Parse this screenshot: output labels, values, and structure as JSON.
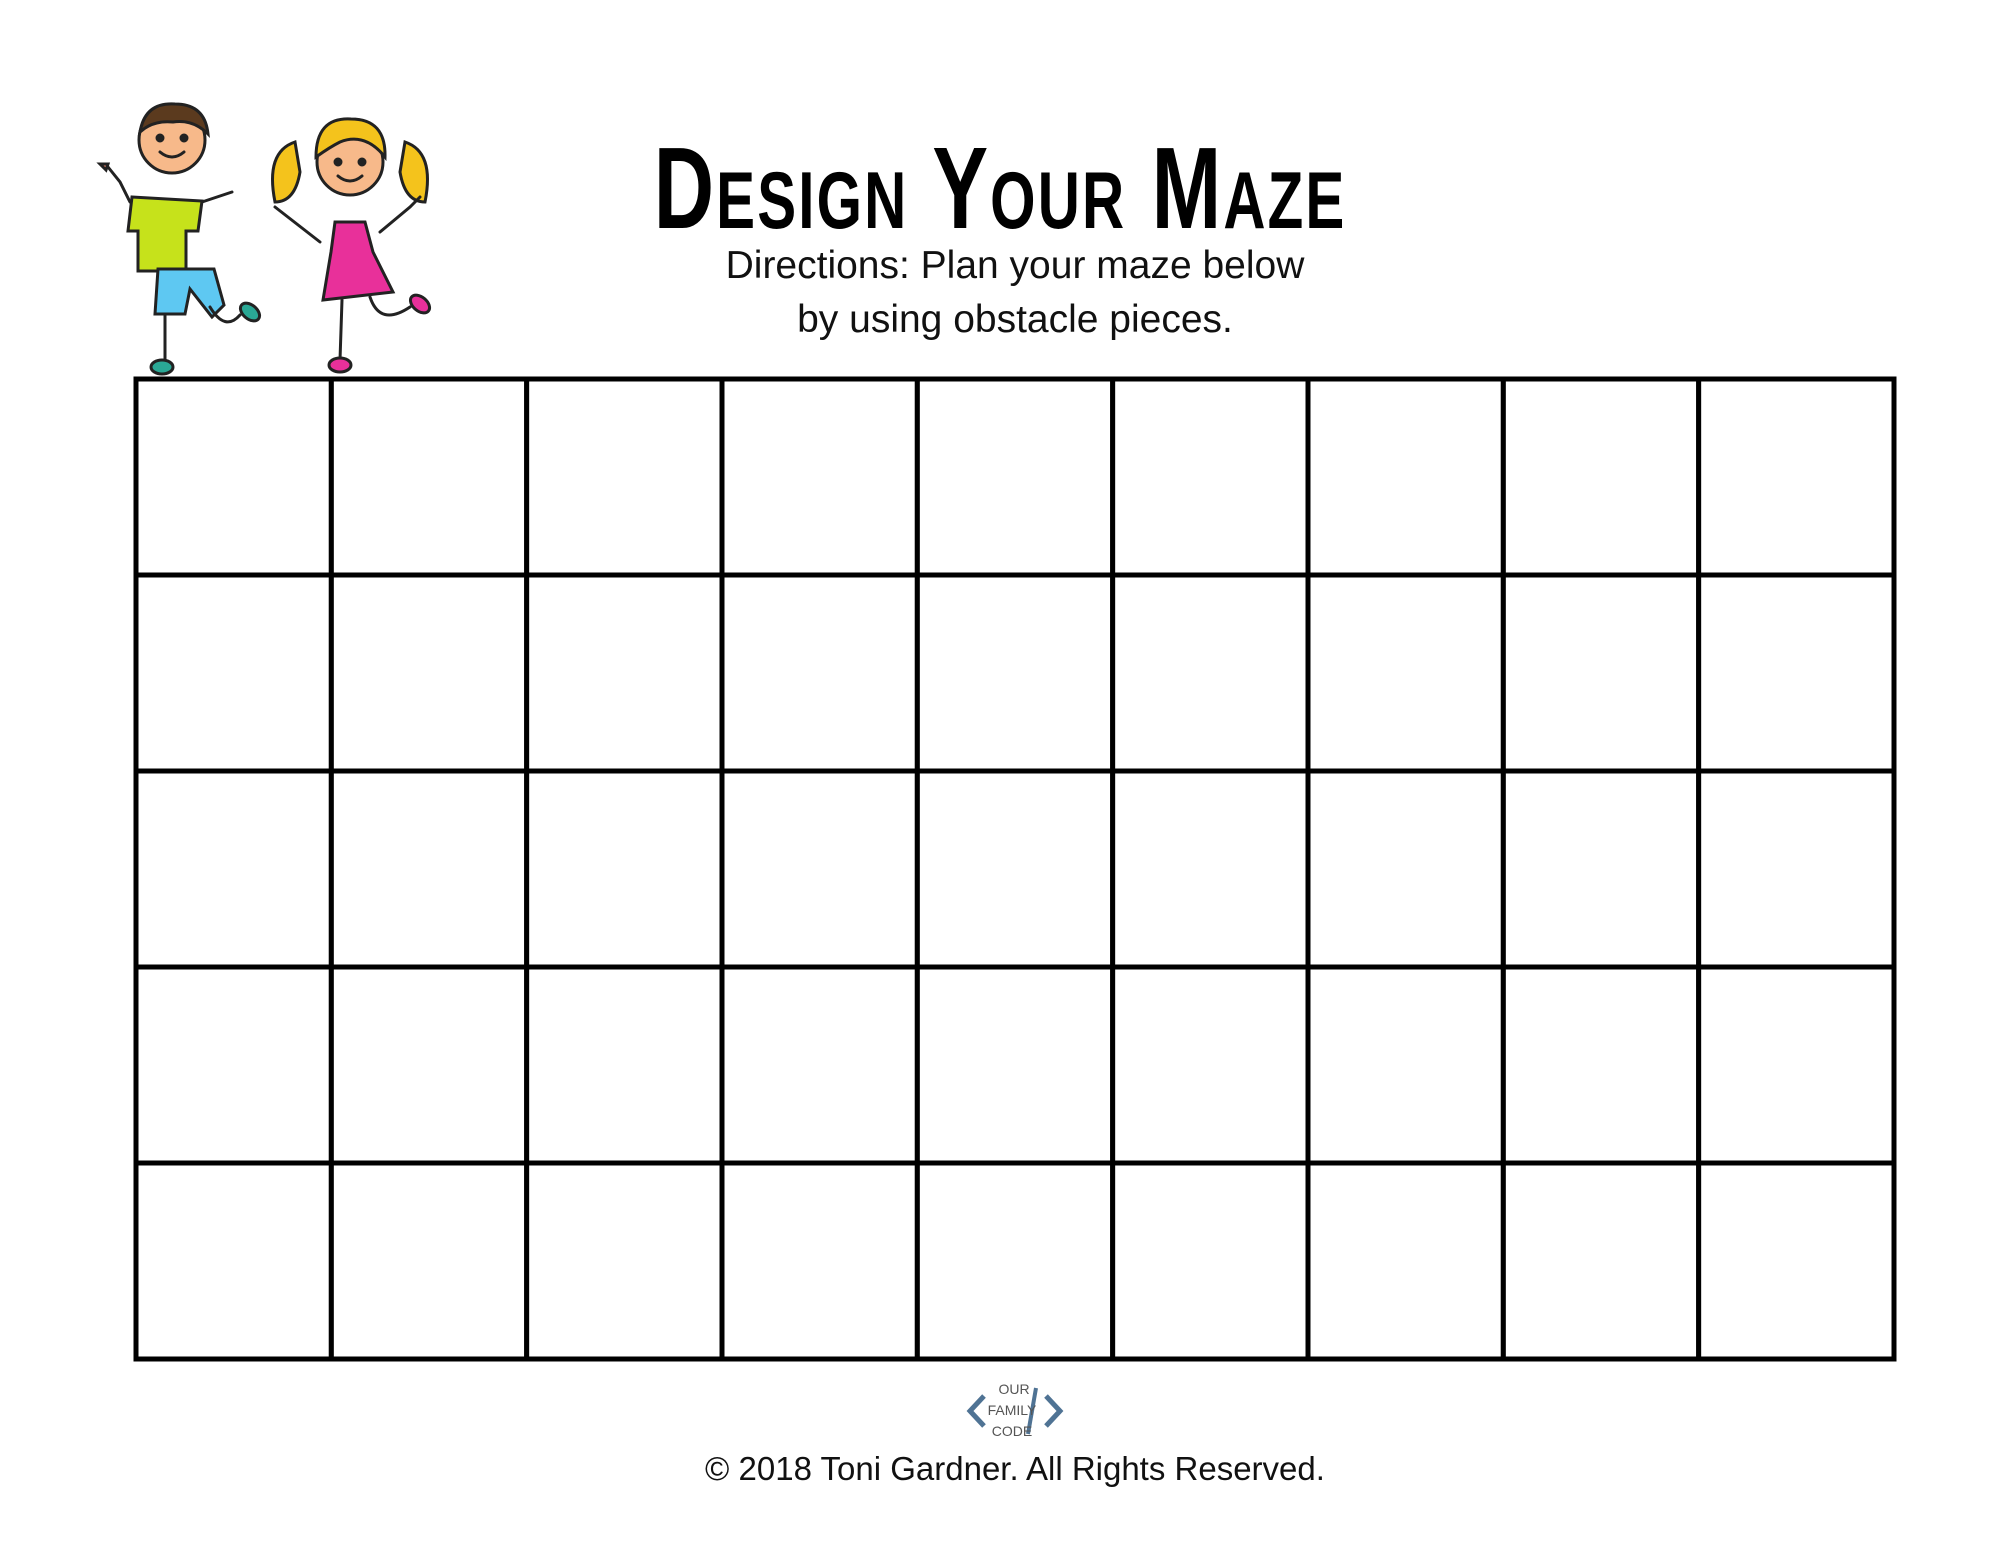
{
  "title": "Design Your Maze",
  "directions": {
    "line1": "Directions: Plan your maze below",
    "line2": "by using obstacle pieces."
  },
  "grid": {
    "rows": 5,
    "columns": 9
  },
  "logo": {
    "text": [
      "OUR",
      "FAMILY",
      "CODE"
    ],
    "color": "#4f7394"
  },
  "footer": "© 2018 Toni Gardner. All Rights Reserved.",
  "illustration": {
    "boy_shirt": "#c6e21b",
    "boy_shorts": "#5ec8f2",
    "girl_dress": "#e8309a",
    "girl_hair": "#f4c31c"
  }
}
